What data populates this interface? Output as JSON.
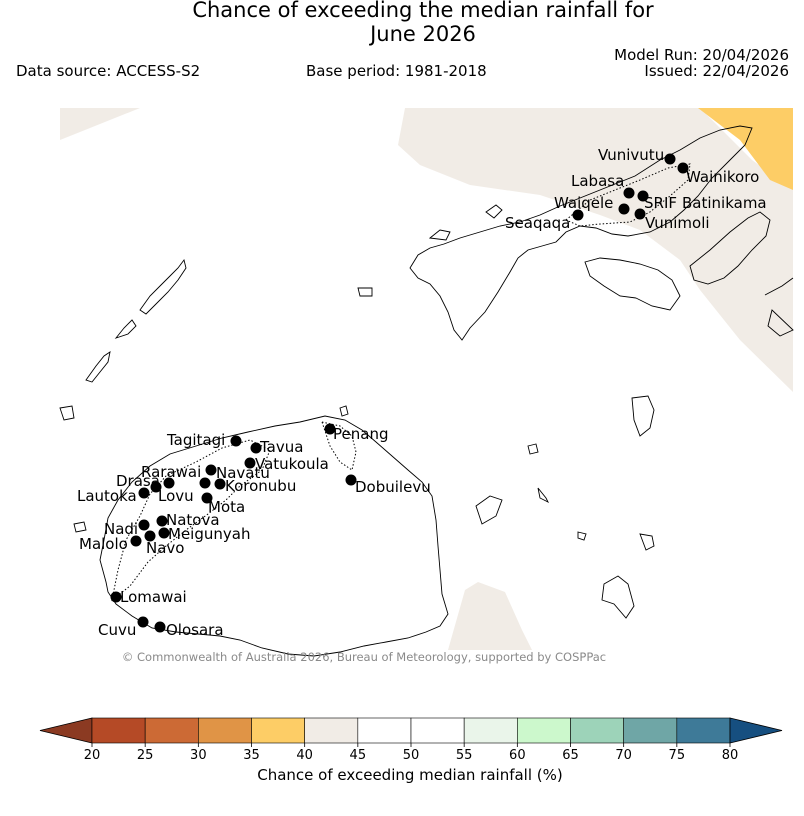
{
  "title": {
    "line1": "Chance of exceeding the median rainfall for",
    "line2": "June 2026"
  },
  "header": {
    "data_source": "Data source: ACCESS-S2",
    "base_period": "Base period: 1981-2018",
    "model_run": "Model Run: 20/04/2026",
    "issued": "Issued: 22/04/2026"
  },
  "map": {
    "copyright": "© Commonwealth of Australia 2026, Bureau of Meteorology, supported by COSPPac",
    "places": [
      {
        "name": "Vunivutu"
      },
      {
        "name": "Wainikoro"
      },
      {
        "name": "Labasa"
      },
      {
        "name": "Waiqele"
      },
      {
        "name": "SRIF"
      },
      {
        "name": "Batinikama"
      },
      {
        "name": "Seaqaqa"
      },
      {
        "name": "Vunimoli"
      },
      {
        "name": "Tagitagi"
      },
      {
        "name": "Tavua"
      },
      {
        "name": "Penang"
      },
      {
        "name": "Vatukoula"
      },
      {
        "name": "Rarawai"
      },
      {
        "name": "Navatu"
      },
      {
        "name": "Drasa"
      },
      {
        "name": "Koronubu"
      },
      {
        "name": "Lautoka"
      },
      {
        "name": "Lovu"
      },
      {
        "name": "Dobuilevu"
      },
      {
        "name": "Mota"
      },
      {
        "name": "Natova"
      },
      {
        "name": "Nadi"
      },
      {
        "name": "Meigunyah"
      },
      {
        "name": "Malolo"
      },
      {
        "name": "Navo"
      },
      {
        "name": "Lomawai"
      },
      {
        "name": "Cuvu"
      },
      {
        "name": "Olosara"
      }
    ]
  },
  "colorbar": {
    "ticks": [
      "20",
      "25",
      "30",
      "35",
      "40",
      "45",
      "50",
      "55",
      "60",
      "65",
      "70",
      "75",
      "80"
    ],
    "colors": [
      "#8b3a22",
      "#b54a26",
      "#cc6a35",
      "#e09446",
      "#fdcd66",
      "#f1ece6",
      "#ffffff",
      "#ffffff",
      "#eaf5ea",
      "#ccf8cc",
      "#9dd3b9",
      "#6fa6a6",
      "#3e7a98",
      "#164f80"
    ],
    "label": "Chance of exceeding median rainfall (%)"
  }
}
